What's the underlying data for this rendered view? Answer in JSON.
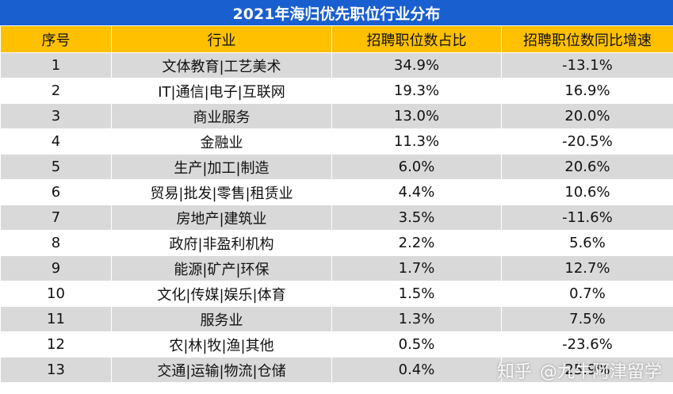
{
  "title": "2021年海归优先职位行业分布",
  "headers": [
    "序号",
    "行业",
    "招聘职位数占比",
    "招聘职位数同比增速"
  ],
  "rows": [
    [
      "1",
      "文体教育|工艺美术",
      "34.9%",
      "-13.1%"
    ],
    [
      "2",
      "IT|通信|电子|互联网",
      "19.3%",
      "16.9%"
    ],
    [
      "3",
      "商业服务",
      "13.0%",
      "20.0%"
    ],
    [
      "4",
      "金融业",
      "11.3%",
      "-20.5%"
    ],
    [
      "5",
      "生产|加工|制造",
      "6.0%",
      "20.6%"
    ],
    [
      "6",
      "贸易|批发|零售|租赁业",
      "4.4%",
      "10.6%"
    ],
    [
      "7",
      "房地产|建筑业",
      "3.5%",
      "-11.6%"
    ],
    [
      "8",
      "政府|非盈利机构",
      "2.2%",
      "5.6%"
    ],
    [
      "9",
      "能源|矿产|环保",
      "1.7%",
      "12.7%"
    ],
    [
      "10",
      "文化|传媒|娱乐|体育",
      "1.5%",
      "0.7%"
    ],
    [
      "11",
      "服务业",
      "1.3%",
      "7.5%"
    ],
    [
      "12",
      "农|林|牧|渔|其他",
      "0.5%",
      "-23.6%"
    ],
    [
      "13",
      "交通|运输|物流|仓储",
      "0.4%",
      "25.9%"
    ]
  ],
  "watermark": {
    "site": "知乎",
    "author": "@九牛阿津留学"
  },
  "colors": {
    "title_bg": "#1a5fd0",
    "header_bg": "#ffc000",
    "row_odd_bg": "#d9d9d9",
    "row_even_bg": "#ffffff"
  }
}
